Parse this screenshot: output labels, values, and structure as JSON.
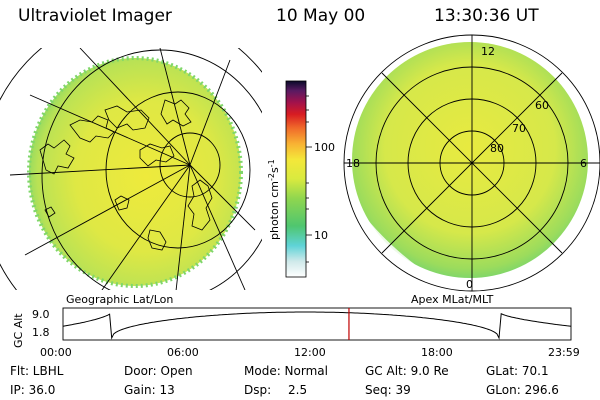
{
  "header": {
    "title": "Ultraviolet Imager",
    "date": "10 May 00",
    "time": "13:30:36 UT"
  },
  "colorbar": {
    "label": "photon cm",
    "label_exp1": "-2",
    "label_s": "s",
    "label_exp2": "-1",
    "ticks": [
      "100",
      "10"
    ]
  },
  "left_panel": {
    "caption": "Geographic Lat/Lon",
    "colors": {
      "ring": "#c7e64e",
      "center": "#e8ec3f",
      "edge": "#6fd36d"
    }
  },
  "right_panel": {
    "caption": "Apex MLat/MLT",
    "mlt_labels": {
      "top": "12",
      "left": "18",
      "right": "6",
      "bottom": "0"
    },
    "lat_labels": [
      "60",
      "70",
      "80"
    ]
  },
  "altitude_plot": {
    "y_label": "GC Alt",
    "y_ticks": [
      "9.0",
      "1.8"
    ],
    "x_ticks": [
      "00:00",
      "06:00",
      "12:00",
      "18:00",
      "23:59"
    ],
    "marker_time_hours": 13.51,
    "marker_color": "#c00000"
  },
  "info": {
    "row1": {
      "flt": "Flt: LBHL",
      "door": "Door: Open",
      "mode": "Mode: Normal",
      "gc_alt": "GC Alt: 9.0 Re",
      "glat": "GLat: 70.1"
    },
    "row2": {
      "ip": "IP: 36.0",
      "gain": "Gain: 13",
      "dsp_label": "Dsp:",
      "dsp_value": "2.5",
      "seq": "Seq: 39",
      "glon": "GLon: 296.6"
    }
  }
}
